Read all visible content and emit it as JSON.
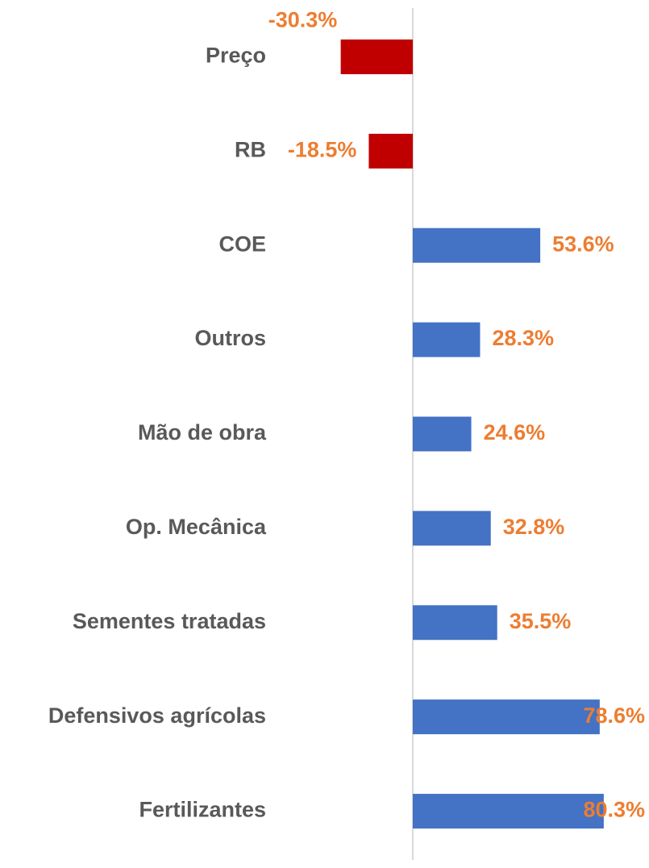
{
  "chart_data": {
    "type": "barh",
    "categories": [
      "Preço",
      "RB",
      "COE",
      "Outros",
      "Mão de obra",
      "Op. Mecânica",
      "Sementes tratadas",
      "Defensivos agrícolas",
      "Fertilizantes"
    ],
    "values": [
      -30.3,
      -18.5,
      53.6,
      28.3,
      24.6,
      32.8,
      35.5,
      78.6,
      80.3
    ],
    "value_labels": [
      "-30.3%",
      "-18.5%",
      "53.6%",
      "28.3%",
      "24.6%",
      "32.8%",
      "35.5%",
      "78.6%",
      "80.3%"
    ],
    "colors": [
      "#c00000",
      "#c00000",
      "#4472c4",
      "#4472c4",
      "#4472c4",
      "#4472c4",
      "#4472c4",
      "#4472c4",
      "#4472c4"
    ],
    "label_color": "#ed7d31",
    "xlim": [
      -60,
      100
    ]
  }
}
